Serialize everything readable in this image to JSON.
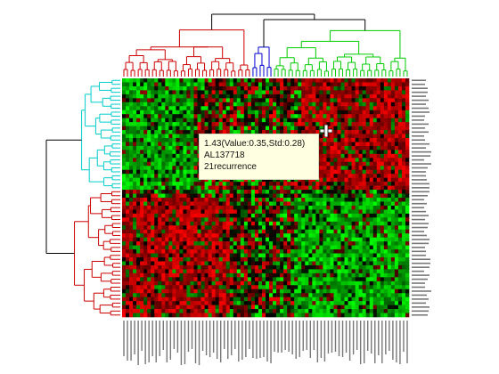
{
  "window": {
    "title": ""
  },
  "chart_data": {
    "type": "heatmap",
    "title": "",
    "colorscale": {
      "low": "#00ff00",
      "mid": "#000000",
      "high": "#ff0000"
    },
    "rows": 60,
    "cols": 80,
    "column_dendrogram": {
      "clusters": [
        {
          "color": "#cc0000"
        },
        {
          "color": "#0000cc"
        },
        {
          "color": "#00cc00"
        }
      ]
    },
    "row_dendrogram": {
      "clusters": [
        {
          "color": "#00cccc"
        },
        {
          "color": "#cc0000"
        }
      ]
    },
    "regions": [
      {
        "row_range": [
          0,
          28
        ],
        "col_range": [
          0,
          20
        ],
        "tendency": "low"
      },
      {
        "row_range": [
          0,
          28
        ],
        "col_range": [
          50,
          80
        ],
        "tendency": "high"
      },
      {
        "row_range": [
          30,
          60
        ],
        "col_range": [
          0,
          30
        ],
        "tendency": "high"
      },
      {
        "row_range": [
          30,
          60
        ],
        "col_range": [
          48,
          80
        ],
        "tendency": "low"
      }
    ],
    "legend": "none",
    "grid": false
  },
  "tooltip": {
    "line1": "1.43(Value:0.35,Std:0.28)",
    "line2": "AL137718",
    "line3": "21recurrence"
  }
}
